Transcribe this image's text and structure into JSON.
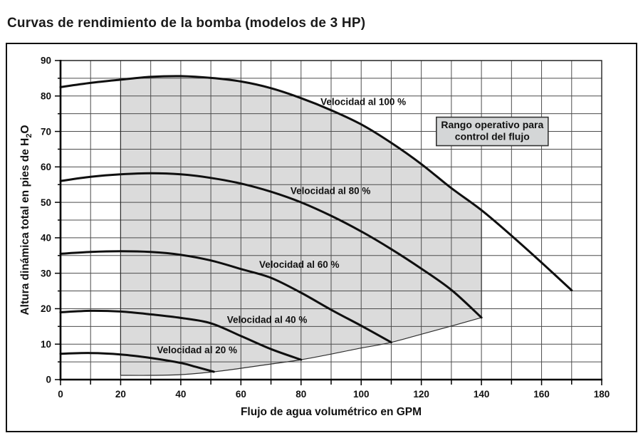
{
  "page_title": "Curvas de rendimiento de la bomba (modelos de 3 HP)",
  "chart_data": {
    "type": "line",
    "title": "Curvas de rendimiento de la bomba (modelos de 3 HP)",
    "xlabel": "Flujo de agua volumétrico en GPM",
    "ylabel": "Altura dinámica total en pies de H2O",
    "ylabel_parts": {
      "pre": "Altura dinámica total en pies de H",
      "sub": "2",
      "post": "O"
    },
    "xlim": [
      0,
      180
    ],
    "ylim": [
      0,
      90
    ],
    "x_tick_labels": [
      "0",
      "20",
      "40",
      "60",
      "80",
      "100",
      "120",
      "140",
      "160",
      "180"
    ],
    "y_tick_labels": [
      "0",
      "10",
      "20",
      "30",
      "40",
      "50",
      "60",
      "70",
      "80",
      "90"
    ],
    "x_major_step": 20,
    "x_minor_step": 10,
    "y_major_step": 10,
    "y_minor_step": 5,
    "grid": {
      "on": true,
      "x_interval": 10,
      "y_interval": 5
    },
    "legend_position": "inline-labels",
    "series": [
      {
        "name": "Velocidad al 100 %",
        "label_pos": [
          100.7,
          78.3
        ],
        "points": [
          [
            0,
            82.5
          ],
          [
            10,
            83.7
          ],
          [
            20,
            84.6
          ],
          [
            30,
            85.4
          ],
          [
            40,
            85.6
          ],
          [
            50,
            85.1
          ],
          [
            60,
            84.1
          ],
          [
            70,
            82.2
          ],
          [
            80,
            79.4
          ],
          [
            90,
            76.0
          ],
          [
            100,
            72.0
          ],
          [
            110,
            66.8
          ],
          [
            120,
            60.8
          ],
          [
            130,
            54.0
          ],
          [
            140,
            47.8
          ],
          [
            150,
            40.6
          ],
          [
            160,
            33.0
          ],
          [
            170,
            25.2
          ]
        ]
      },
      {
        "name": "Velocidad al 80 %",
        "label_pos": [
          89.8,
          53.2
        ],
        "points": [
          [
            0,
            56.0
          ],
          [
            10,
            57.2
          ],
          [
            20,
            57.9
          ],
          [
            30,
            58.2
          ],
          [
            40,
            57.9
          ],
          [
            50,
            56.9
          ],
          [
            60,
            55.3
          ],
          [
            70,
            53.0
          ],
          [
            80,
            50.0
          ],
          [
            90,
            46.2
          ],
          [
            100,
            41.8
          ],
          [
            110,
            36.8
          ],
          [
            120,
            31.3
          ],
          [
            130,
            25.3
          ],
          [
            140,
            17.5
          ]
        ]
      },
      {
        "name": "Velocidad al 60 %",
        "label_pos": [
          79.4,
          32.4
        ],
        "points": [
          [
            0,
            35.5
          ],
          [
            10,
            36.0
          ],
          [
            20,
            36.2
          ],
          [
            30,
            36.0
          ],
          [
            40,
            35.2
          ],
          [
            50,
            33.6
          ],
          [
            60,
            31.2
          ],
          [
            70,
            28.7
          ],
          [
            80,
            24.5
          ],
          [
            90,
            19.7
          ],
          [
            100,
            15.2
          ],
          [
            110,
            10.5
          ]
        ]
      },
      {
        "name": "Velocidad al 40 %",
        "label_pos": [
          68.7,
          16.9
        ],
        "points": [
          [
            0,
            19.0
          ],
          [
            10,
            19.4
          ],
          [
            20,
            19.2
          ],
          [
            30,
            18.4
          ],
          [
            40,
            17.4
          ],
          [
            50,
            15.9
          ],
          [
            60,
            12.3
          ],
          [
            70,
            8.6
          ],
          [
            80,
            5.6
          ]
        ]
      },
      {
        "name": "Velocidad al 20 %",
        "label_pos": [
          45.4,
          8.3
        ],
        "points": [
          [
            0,
            7.3
          ],
          [
            10,
            7.5
          ],
          [
            20,
            7.1
          ],
          [
            30,
            6.1
          ],
          [
            40,
            4.7
          ],
          [
            45,
            3.6
          ],
          [
            51,
            2.2
          ]
        ]
      }
    ],
    "operating_region": {
      "label": "Rango operativo para control del flujo",
      "label_lines": [
        "Rango operativo para",
        "control del flujo"
      ],
      "label_center": [
        143.6,
        70.0
      ],
      "x_range": [
        20,
        140
      ],
      "top_series": "Velocidad al 100 %",
      "right_edge_top": 47.8,
      "bottom_boundary": [
        [
          20,
          1.2
        ],
        [
          30,
          1.2
        ],
        [
          40,
          1.4
        ],
        [
          51,
          2.2
        ],
        [
          60,
          3.2
        ],
        [
          70,
          4.4
        ],
        [
          80,
          5.6
        ],
        [
          90,
          7.2
        ],
        [
          100,
          8.9
        ],
        [
          110,
          10.5
        ],
        [
          120,
          12.8
        ],
        [
          130,
          15.1
        ],
        [
          140,
          17.5
        ]
      ]
    },
    "colors": {
      "curve": "#0f0f0f",
      "grid": "#4c4c4c",
      "axis": "#000000",
      "plot_border": "#222222",
      "region_fill": "#dbdbdb",
      "region_outline": "#2e2e2e",
      "box_fill": "#d4d6d7",
      "box_border": "#333333",
      "text": "#111111"
    }
  }
}
